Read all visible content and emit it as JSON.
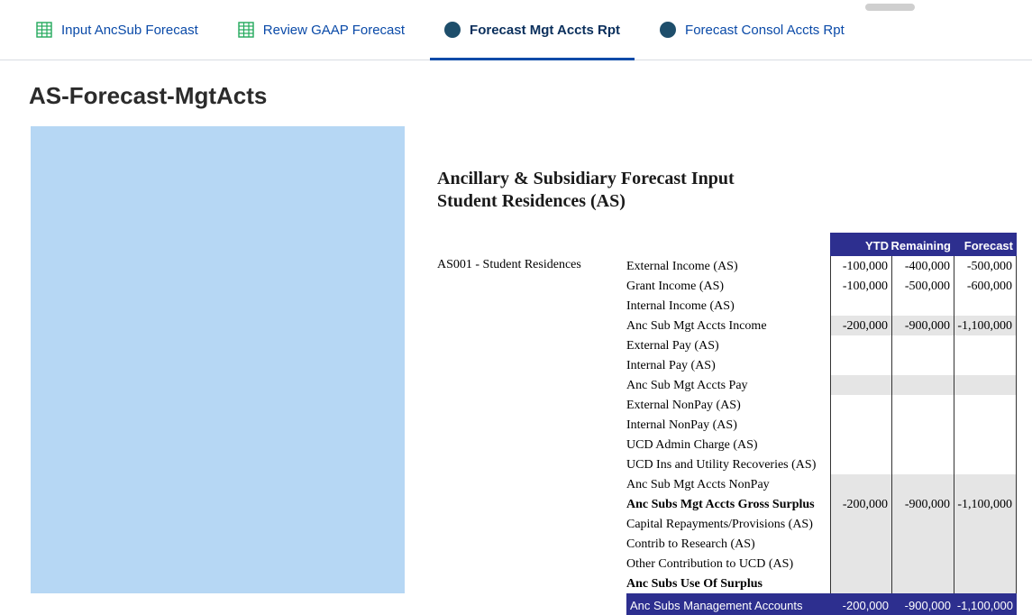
{
  "tabs": [
    {
      "label": "Input AncSub Forecast",
      "icon": "grid",
      "active": false
    },
    {
      "label": "Review GAAP Forecast",
      "icon": "grid",
      "active": false
    },
    {
      "label": "Forecast Mgt Accts Rpt",
      "icon": "dot",
      "active": true
    },
    {
      "label": "Forecast Consol Accts Rpt",
      "icon": "dot",
      "active": false
    }
  ],
  "colors": {
    "link": "#0a4aa8",
    "active_tab_text": "#0a2f5c",
    "icon_green": "#22a95b",
    "icon_navy": "#1e4e6b",
    "blue_panel": "#b6d7f4",
    "header_bg": "#2d2f8f",
    "subtotal_bg": "#e5e5e5"
  },
  "page_title": "AS-Forecast-MgtActs",
  "report": {
    "title_line1": "Ancillary & Subsidiary Forecast Input",
    "title_line2": "Student Residences (AS)",
    "unit_label": "AS001 - Student Residences",
    "columns": [
      "YTD",
      "Remaining",
      "Forecast"
    ],
    "rows": [
      {
        "label": "External Income (AS)",
        "vals": [
          "-100,000",
          "-400,000",
          "-500,000"
        ],
        "style": ""
      },
      {
        "label": "Grant Income (AS)",
        "vals": [
          "-100,000",
          "-500,000",
          "-600,000"
        ],
        "style": ""
      },
      {
        "label": "Internal Income (AS)",
        "vals": [
          "",
          "",
          ""
        ],
        "style": ""
      },
      {
        "label": "Anc Sub Mgt Accts Income",
        "vals": [
          "-200,000",
          "-900,000",
          "-1,100,000"
        ],
        "style": "subtotal"
      },
      {
        "label": "External Pay (AS)",
        "vals": [
          "",
          "",
          ""
        ],
        "style": ""
      },
      {
        "label": "Internal Pay (AS)",
        "vals": [
          "",
          "",
          ""
        ],
        "style": ""
      },
      {
        "label": "Anc Sub Mgt Accts Pay",
        "vals": [
          "",
          "",
          ""
        ],
        "style": "subtotal"
      },
      {
        "label": "External NonPay (AS)",
        "vals": [
          "",
          "",
          ""
        ],
        "style": ""
      },
      {
        "label": "Internal NonPay (AS)",
        "vals": [
          "",
          "",
          ""
        ],
        "style": ""
      },
      {
        "label": "UCD Admin Charge (AS)",
        "vals": [
          "",
          "",
          ""
        ],
        "style": ""
      },
      {
        "label": "UCD Ins and Utility Recoveries (AS)",
        "vals": [
          "",
          "",
          ""
        ],
        "style": ""
      },
      {
        "label": "Anc Sub Mgt Accts NonPay",
        "vals": [
          "",
          "",
          ""
        ],
        "style": "subtotal"
      },
      {
        "label": "Anc Subs Mgt Accts Gross Surplus",
        "vals": [
          "-200,000",
          "-900,000",
          "-1,100,000"
        ],
        "style": "subtotal bold"
      },
      {
        "label": "Capital Repayments/Provisions (AS)",
        "vals": [
          "",
          "",
          ""
        ],
        "style": "grey"
      },
      {
        "label": "Contrib to Research (AS)",
        "vals": [
          "",
          "",
          ""
        ],
        "style": "grey"
      },
      {
        "label": "Other Contribution to UCD (AS)",
        "vals": [
          "",
          "",
          ""
        ],
        "style": "grey"
      },
      {
        "label": "Anc Subs Use Of Surplus",
        "vals": [
          "",
          "",
          ""
        ],
        "style": "grey bold"
      },
      {
        "label": "Anc Subs Management Accounts",
        "vals": [
          "-200,000",
          "-900,000",
          "-1,100,000"
        ],
        "style": "grand"
      }
    ]
  }
}
